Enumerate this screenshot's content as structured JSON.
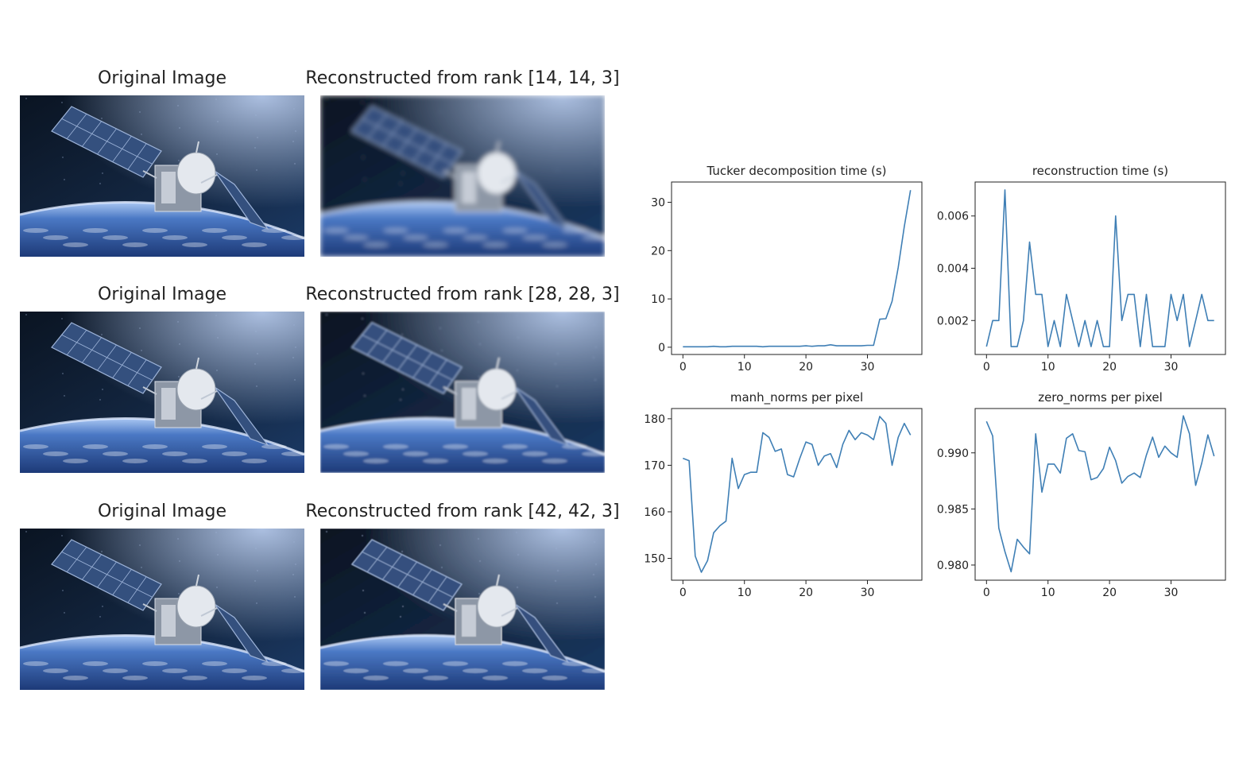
{
  "image_panels": {
    "rows": [
      {
        "original_title": "Original Image",
        "reconstructed_title": "Reconstructed from rank [14, 14, 3]",
        "blur": 3.2
      },
      {
        "original_title": "Original Image",
        "reconstructed_title": "Reconstructed from rank [28, 28, 3]",
        "blur": 1.2
      },
      {
        "original_title": "Original Image",
        "reconstructed_title": "Reconstructed from rank [42, 42, 3]",
        "blur": 0.5
      }
    ]
  },
  "colors": {
    "line": "#3f7fb5",
    "axis": "#222222",
    "space": "#0b1626",
    "earth": "#4a78c4"
  },
  "chart_data": [
    {
      "type": "line",
      "title": "Tucker decomposition time (s)",
      "x": [
        0,
        1,
        2,
        3,
        4,
        5,
        6,
        7,
        8,
        9,
        10,
        11,
        12,
        13,
        14,
        15,
        16,
        17,
        18,
        19,
        20,
        21,
        22,
        23,
        24,
        25,
        26,
        27,
        28,
        29,
        30,
        31,
        32,
        33,
        34,
        35,
        36,
        37
      ],
      "series": [
        {
          "values": [
            0.1,
            0.1,
            0.1,
            0.1,
            0.1,
            0.2,
            0.1,
            0.1,
            0.2,
            0.2,
            0.2,
            0.2,
            0.2,
            0.1,
            0.2,
            0.2,
            0.2,
            0.2,
            0.2,
            0.2,
            0.3,
            0.2,
            0.3,
            0.3,
            0.5,
            0.3,
            0.3,
            0.3,
            0.3,
            0.3,
            0.4,
            0.4,
            5.8,
            5.9,
            9.5,
            16.5,
            25.0,
            32.5
          ]
        }
      ],
      "xticks": [
        0,
        10,
        20,
        30
      ],
      "yticks": [
        0,
        10,
        20,
        30
      ],
      "ytick_labels": [
        "0",
        "10",
        "20",
        "30"
      ],
      "xlim": [
        -1.85,
        38.85
      ],
      "ylim": [
        -1.5,
        34.2
      ]
    },
    {
      "type": "line",
      "title": "reconstruction time (s)",
      "x": [
        0,
        1,
        2,
        3,
        4,
        5,
        6,
        7,
        8,
        9,
        10,
        11,
        12,
        13,
        14,
        15,
        16,
        17,
        18,
        19,
        20,
        21,
        22,
        23,
        24,
        25,
        26,
        27,
        28,
        29,
        30,
        31,
        32,
        33,
        34,
        35,
        36,
        37
      ],
      "series": [
        {
          "values": [
            0.001,
            0.002,
            0.002,
            0.007,
            0.001,
            0.001,
            0.002,
            0.005,
            0.003,
            0.003,
            0.001,
            0.002,
            0.001,
            0.003,
            0.002,
            0.001,
            0.002,
            0.001,
            0.002,
            0.001,
            0.001,
            0.006,
            0.002,
            0.003,
            0.003,
            0.001,
            0.003,
            0.001,
            0.001,
            0.001,
            0.003,
            0.002,
            0.003,
            0.001,
            0.002,
            0.003,
            0.002,
            0.002
          ]
        }
      ],
      "xticks": [
        0,
        10,
        20,
        30
      ],
      "yticks": [
        0.002,
        0.004,
        0.006
      ],
      "ytick_labels": [
        "0.002",
        "0.004",
        "0.006"
      ],
      "xlim": [
        -1.85,
        38.85
      ],
      "ylim": [
        0.0007,
        0.0073
      ]
    },
    {
      "type": "line",
      "title": "manh_norms per pixel",
      "x": [
        0,
        1,
        2,
        3,
        4,
        5,
        6,
        7,
        8,
        9,
        10,
        11,
        12,
        13,
        14,
        15,
        16,
        17,
        18,
        19,
        20,
        21,
        22,
        23,
        24,
        25,
        26,
        27,
        28,
        29,
        30,
        31,
        32,
        33,
        34,
        35,
        36,
        37
      ],
      "series": [
        {
          "values": [
            171.5,
            171.0,
            150.5,
            147.0,
            149.5,
            155.5,
            157.0,
            158.0,
            171.5,
            165.0,
            168.0,
            168.5,
            168.5,
            177.0,
            176.0,
            173.0,
            173.5,
            168.0,
            167.5,
            171.5,
            175.0,
            174.5,
            170.0,
            172.0,
            172.5,
            169.5,
            174.5,
            177.5,
            175.5,
            177.0,
            176.5,
            175.5,
            180.5,
            179.0,
            170.0,
            176.0,
            179.0,
            176.5
          ]
        }
      ],
      "xticks": [
        0,
        10,
        20,
        30
      ],
      "yticks": [
        150,
        160,
        170,
        180
      ],
      "ytick_labels": [
        "150",
        "160",
        "170",
        "180"
      ],
      "xlim": [
        -1.85,
        38.85
      ],
      "ylim": [
        145.3,
        182.2
      ]
    },
    {
      "type": "line",
      "title": "zero_norms per pixel",
      "x": [
        0,
        1,
        2,
        3,
        4,
        5,
        6,
        7,
        8,
        9,
        10,
        11,
        12,
        13,
        14,
        15,
        16,
        17,
        18,
        19,
        20,
        21,
        22,
        23,
        24,
        25,
        26,
        27,
        28,
        29,
        30,
        31,
        32,
        33,
        34,
        35,
        36,
        37
      ],
      "series": [
        {
          "values": [
            0.9928,
            0.9915,
            0.9833,
            0.9812,
            0.9794,
            0.9823,
            0.9816,
            0.981,
            0.9917,
            0.9865,
            0.989,
            0.989,
            0.9882,
            0.9913,
            0.9917,
            0.9902,
            0.9901,
            0.9876,
            0.9878,
            0.9886,
            0.9905,
            0.9893,
            0.9873,
            0.9879,
            0.9882,
            0.9878,
            0.9898,
            0.9914,
            0.9896,
            0.9906,
            0.99,
            0.9896,
            0.9933,
            0.9917,
            0.9871,
            0.9891,
            0.9916,
            0.9897
          ]
        }
      ],
      "xticks": [
        0,
        10,
        20,
        30
      ],
      "yticks": [
        0.98,
        0.985,
        0.99
      ],
      "ytick_labels": [
        "0.980",
        "0.985",
        "0.990"
      ],
      "xlim": [
        -1.85,
        38.85
      ],
      "ylim": [
        0.97865,
        0.99395
      ]
    }
  ]
}
